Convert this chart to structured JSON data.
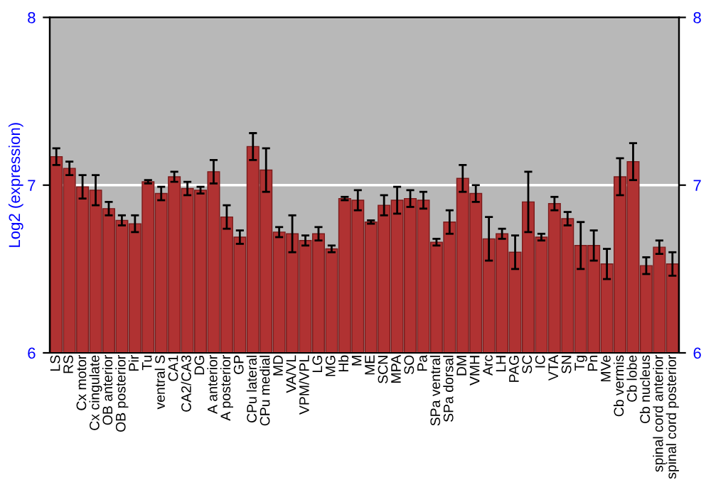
{
  "chart_data": {
    "type": "bar",
    "ylabel": "Log2 (expression)",
    "categories": [
      "LS",
      "RS",
      "Cx motor",
      "Cx cingulate",
      "OB anterior",
      "OB posterior",
      "Pir",
      "Tu",
      "ventral S",
      "CA1",
      "CA2/CA3",
      "DG",
      "A anterior",
      "A posterior",
      "GP",
      "CPu lateral",
      "CPu medial",
      "MD",
      "VA/VL",
      "VPM/VPL",
      "LG",
      "MG",
      "Hb",
      "M",
      "ME",
      "SCN",
      "MPA",
      "SO",
      "Pa",
      "SPa ventral",
      "SPa dorsal",
      "DM",
      "VMH",
      "Arc",
      "LH",
      "PAG",
      "SC",
      "IC",
      "VTA",
      "SN",
      "Tg",
      "Pn",
      "MVe",
      "Cb vermis",
      "Cb lobe",
      "Cb nucleus",
      "spinal cord anterior",
      "spinal cord posterior"
    ],
    "values": [
      7.17,
      7.1,
      6.99,
      6.97,
      6.86,
      6.79,
      6.77,
      7.02,
      6.95,
      7.05,
      6.98,
      6.97,
      7.08,
      6.81,
      6.69,
      7.23,
      7.09,
      6.72,
      6.71,
      6.67,
      6.71,
      6.62,
      6.92,
      6.91,
      6.78,
      6.88,
      6.91,
      6.92,
      6.91,
      6.66,
      6.78,
      7.04,
      6.95,
      6.68,
      6.71,
      6.6,
      6.9,
      6.69,
      6.89,
      6.8,
      6.64,
      6.64,
      6.53,
      7.05,
      7.14,
      6.52,
      6.63,
      6.53
    ],
    "errors": [
      0.05,
      0.04,
      0.07,
      0.09,
      0.04,
      0.03,
      0.05,
      0.01,
      0.04,
      0.03,
      0.04,
      0.02,
      0.07,
      0.07,
      0.04,
      0.08,
      0.13,
      0.03,
      0.11,
      0.03,
      0.04,
      0.02,
      0.01,
      0.06,
      0.01,
      0.06,
      0.08,
      0.05,
      0.05,
      0.02,
      0.07,
      0.08,
      0.05,
      0.13,
      0.03,
      0.1,
      0.18,
      0.02,
      0.04,
      0.04,
      0.14,
      0.09,
      0.09,
      0.11,
      0.11,
      0.05,
      0.04,
      0.07
    ],
    "color": "#b03232",
    "ylim": [
      6,
      8
    ],
    "yticks": [
      6,
      7,
      8
    ],
    "y2lim": [
      6,
      8
    ],
    "y2ticks": [
      6,
      7,
      8
    ],
    "grid": "y",
    "legend": false
  }
}
